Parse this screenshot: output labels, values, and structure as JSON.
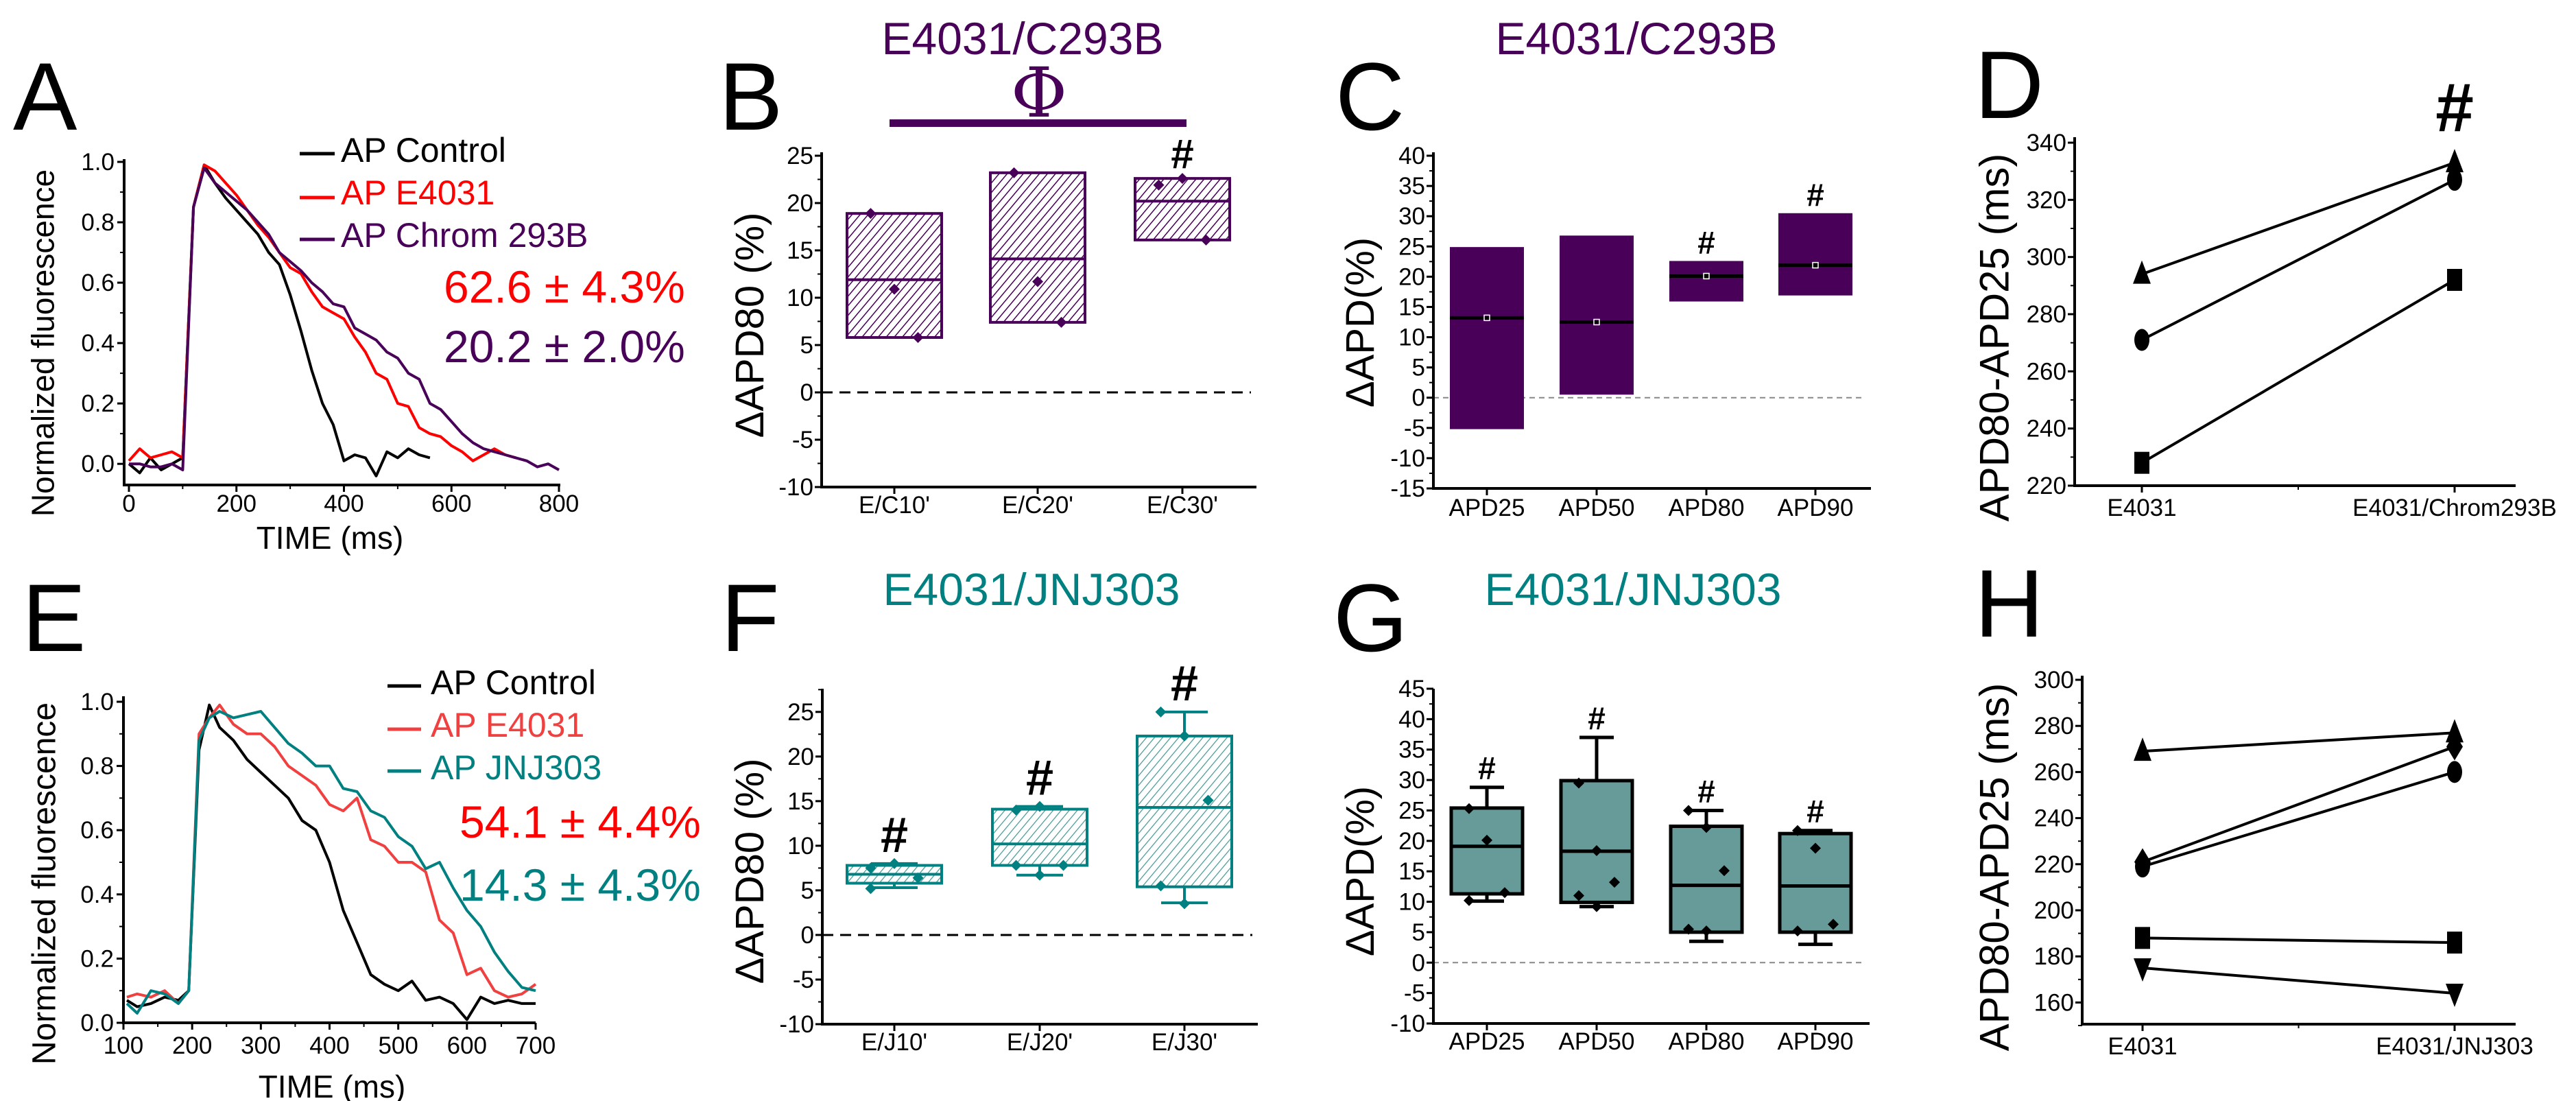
{
  "colors": {
    "purple": "#480058",
    "teal": "#008080",
    "teal_fill": "#669b99",
    "red": "#ff0000",
    "black": "#000000",
    "gray": "#888888"
  },
  "chart_data": [
    {
      "panel": "A",
      "type": "line",
      "xlabel": "TIME (ms)",
      "ylabel": "Normalized fluorescence",
      "xlim": [
        0,
        800
      ],
      "ylim": [
        -0.07,
        1.0
      ],
      "xticks": [
        "0",
        "200",
        "400",
        "600",
        "800"
      ],
      "yticks": [
        "0.0",
        "0.2",
        "0.4",
        "0.6",
        "0.8",
        "1.0"
      ],
      "series": [
        {
          "name": "AP Control",
          "color": "#000000",
          "x": [
            0,
            20,
            40,
            60,
            80,
            100,
            120,
            140,
            160,
            180,
            200,
            220,
            240,
            260,
            280,
            300,
            320,
            340,
            360,
            380,
            400,
            420,
            440,
            460,
            480,
            500,
            520,
            540,
            560
          ],
          "y": [
            0,
            -0.03,
            0.02,
            -0.02,
            0.0,
            0.02,
            0.85,
            0.99,
            0.93,
            0.88,
            0.84,
            0.8,
            0.76,
            0.7,
            0.66,
            0.56,
            0.44,
            0.31,
            0.2,
            0.13,
            0.01,
            0.03,
            0.02,
            -0.04,
            0.04,
            0.02,
            0.05,
            0.03,
            0.02
          ]
        },
        {
          "name": "AP E4031",
          "color": "#ff0000",
          "x": [
            0,
            20,
            40,
            60,
            80,
            100,
            120,
            140,
            160,
            180,
            200,
            220,
            240,
            260,
            280,
            300,
            320,
            340,
            360,
            380,
            400,
            420,
            440,
            460,
            480,
            500,
            520,
            540,
            560,
            580,
            600,
            620,
            640,
            660,
            680,
            700,
            720
          ],
          "y": [
            0.01,
            0.05,
            0.02,
            0.03,
            0.04,
            0.02,
            0.85,
            0.99,
            0.97,
            0.93,
            0.89,
            0.84,
            0.79,
            0.75,
            0.7,
            0.65,
            0.63,
            0.57,
            0.52,
            0.5,
            0.48,
            0.42,
            0.37,
            0.3,
            0.28,
            0.2,
            0.19,
            0.12,
            0.1,
            0.09,
            0.06,
            0.04,
            0.01,
            0.03,
            0.05,
            0.03,
            0.02
          ]
        },
        {
          "name": "AP Chrom 293B",
          "color": "#480058",
          "x": [
            0,
            20,
            40,
            60,
            80,
            100,
            120,
            140,
            160,
            180,
            200,
            220,
            240,
            260,
            280,
            300,
            320,
            340,
            360,
            380,
            400,
            420,
            440,
            460,
            480,
            500,
            520,
            540,
            560,
            580,
            600,
            620,
            640,
            660,
            680,
            700,
            720,
            740,
            760,
            780,
            800
          ],
          "y": [
            0,
            0,
            -0.01,
            -0.01,
            0,
            -0.02,
            0.85,
            0.98,
            0.93,
            0.9,
            0.87,
            0.84,
            0.8,
            0.76,
            0.7,
            0.67,
            0.64,
            0.6,
            0.57,
            0.53,
            0.52,
            0.45,
            0.43,
            0.41,
            0.37,
            0.35,
            0.3,
            0.28,
            0.2,
            0.18,
            0.14,
            0.1,
            0.07,
            0.05,
            0.04,
            0.03,
            0.02,
            0.01,
            -0.01,
            0,
            -0.02
          ]
        }
      ],
      "annotations": [
        {
          "text": "62.6 ± 4.3%",
          "color": "#ff0000"
        },
        {
          "text": "20.2 ± 2.0%",
          "color": "#480058"
        }
      ]
    },
    {
      "panel": "B",
      "type": "box",
      "style": "hatch",
      "title": "E4031/C293B",
      "color": "#480058",
      "ylabel": "ΔAPD80 (%)",
      "ylim": [
        -10,
        25
      ],
      "yticks": [
        "-10",
        "-5",
        "0",
        "5",
        "10",
        "15",
        "20",
        "25"
      ],
      "categories": [
        "E/C10'",
        "E/C20'",
        "E/C30'"
      ],
      "boxes": [
        {
          "q1": 5.8,
          "median": 11.9,
          "q3": 18.9,
          "points": [
            18.9,
            10.9,
            5.8
          ]
        },
        {
          "q1": 7.4,
          "median": 14.1,
          "q3": 23.2,
          "points": [
            23.2,
            11.7,
            7.4
          ]
        },
        {
          "q1": 16.1,
          "median": 20.2,
          "q3": 22.6,
          "points": [
            21.9,
            22.6,
            16.1
          ]
        }
      ],
      "significance": [
        "",
        "",
        "#"
      ],
      "bracket_symbol": "Φ",
      "reference_line": 0
    },
    {
      "panel": "C",
      "type": "box",
      "style": "solid",
      "title": "E4031/C293B",
      "color": "#480058",
      "ylabel": "ΔAPD(%)",
      "ylim": [
        -15,
        40
      ],
      "yticks": [
        "-15",
        "-10",
        "-5",
        "0",
        "5",
        "10",
        "15",
        "20",
        "25",
        "30",
        "35",
        "40"
      ],
      "categories": [
        "APD25",
        "APD50",
        "APD80",
        "APD90"
      ],
      "boxes": [
        {
          "q1": -5.2,
          "median": 13.2,
          "q3": 24.9,
          "points": []
        },
        {
          "q1": 0.5,
          "median": 12.5,
          "q3": 26.8,
          "points": []
        },
        {
          "q1": 15.9,
          "median": 20.1,
          "q3": 22.6,
          "points": []
        },
        {
          "q1": 16.9,
          "median": 21.9,
          "q3": 30.5,
          "points": []
        }
      ],
      "significance": [
        "",
        "",
        "#",
        "#"
      ],
      "reference_line": 0
    },
    {
      "panel": "D",
      "type": "paired",
      "ylabel": "APD80-APD25 (ms)",
      "ylim": [
        220,
        340
      ],
      "yticks": [
        "220",
        "240",
        "260",
        "280",
        "300",
        "320",
        "340"
      ],
      "categories": [
        "E4031",
        "E4031/Chrom293B"
      ],
      "series": [
        {
          "marker": "triangle-up",
          "values": [
            294,
            333
          ]
        },
        {
          "marker": "circle",
          "values": [
            271,
            327
          ]
        },
        {
          "marker": "square",
          "values": [
            228,
            292
          ]
        }
      ],
      "significance": [
        "",
        "#"
      ]
    },
    {
      "panel": "E",
      "type": "line",
      "xlabel": "TIME (ms)",
      "ylabel": "Normalized fluorescence",
      "xlim": [
        100,
        700
      ],
      "ylim": [
        0,
        1.0
      ],
      "xticks": [
        "100",
        "200",
        "300",
        "400",
        "500",
        "600",
        "700"
      ],
      "yticks": [
        "0.0",
        "0.2",
        "0.4",
        "0.6",
        "0.8",
        "1.0"
      ],
      "series": [
        {
          "name": "AP Control",
          "color": "#000000",
          "x": [
            105,
            120,
            140,
            160,
            180,
            195,
            210,
            225,
            240,
            260,
            280,
            300,
            320,
            340,
            360,
            380,
            400,
            420,
            440,
            460,
            480,
            500,
            520,
            540,
            560,
            580,
            600,
            620,
            640,
            660,
            680,
            700
          ],
          "y": [
            0.07,
            0.05,
            0.06,
            0.08,
            0.07,
            0.1,
            0.85,
            0.99,
            0.92,
            0.88,
            0.82,
            0.78,
            0.74,
            0.7,
            0.63,
            0.6,
            0.5,
            0.35,
            0.25,
            0.15,
            0.12,
            0.1,
            0.13,
            0.07,
            0.08,
            0.06,
            0.01,
            0.08,
            0.06,
            0.07,
            0.06,
            0.06
          ]
        },
        {
          "name": "AP E4031",
          "color": "#f04040",
          "x": [
            105,
            120,
            140,
            160,
            180,
            195,
            210,
            225,
            240,
            260,
            280,
            300,
            320,
            340,
            360,
            380,
            400,
            420,
            440,
            460,
            480,
            500,
            520,
            540,
            560,
            580,
            600,
            620,
            640,
            660,
            680,
            700
          ],
          "y": [
            0.08,
            0.09,
            0.08,
            0.1,
            0.06,
            0.1,
            0.9,
            0.95,
            0.99,
            0.93,
            0.9,
            0.9,
            0.86,
            0.8,
            0.77,
            0.74,
            0.68,
            0.66,
            0.7,
            0.57,
            0.55,
            0.5,
            0.5,
            0.47,
            0.32,
            0.28,
            0.15,
            0.17,
            0.1,
            0.08,
            0.09,
            0.12
          ]
        },
        {
          "name": "AP JNJ303",
          "color": "#008080",
          "x": [
            105,
            120,
            140,
            160,
            180,
            195,
            210,
            225,
            240,
            260,
            280,
            300,
            320,
            340,
            360,
            380,
            400,
            420,
            440,
            460,
            480,
            500,
            520,
            540,
            560,
            580,
            600,
            620,
            640,
            660,
            680,
            700
          ],
          "y": [
            0.06,
            0.03,
            0.1,
            0.09,
            0.06,
            0.1,
            0.88,
            0.95,
            0.97,
            0.95,
            0.96,
            0.97,
            0.92,
            0.87,
            0.84,
            0.8,
            0.8,
            0.73,
            0.72,
            0.66,
            0.64,
            0.58,
            0.55,
            0.48,
            0.5,
            0.42,
            0.35,
            0.3,
            0.22,
            0.16,
            0.11,
            0.1
          ]
        }
      ],
      "annotations": [
        {
          "text": "54.1 ± 4.4%",
          "color": "#ff0000"
        },
        {
          "text": "14.3 ± 4.3%",
          "color": "#008080"
        }
      ]
    },
    {
      "panel": "F",
      "type": "box",
      "style": "hatch",
      "title": "E4031/JNJ303",
      "color": "#008080",
      "ylabel": "ΔAPD80 (%)",
      "ylim": [
        -10,
        27.6
      ],
      "yticks": [
        "-10",
        "-5",
        "0",
        "5",
        "10",
        "15",
        "20",
        "25"
      ],
      "categories": [
        "E/J10'",
        "E/J20'",
        "E/J30'"
      ],
      "boxes": [
        {
          "q1": 5.8,
          "median": 6.8,
          "q3": 7.8,
          "whisker_low": 5.3,
          "whisker_high": 8.0,
          "points": [
            7.5,
            8.0,
            6.4,
            5.2
          ]
        },
        {
          "q1": 7.8,
          "median": 10.2,
          "q3": 14.1,
          "whisker_low": 6.7,
          "whisker_high": 14.4,
          "points": [
            14.0,
            14.4,
            7.8,
            7.8,
            6.7
          ]
        },
        {
          "q1": 5.4,
          "median": 14.3,
          "q3": 22.3,
          "whisker_low": 3.6,
          "whisker_high": 25.0,
          "points": [
            25.0,
            22.3,
            15.1,
            5.5,
            3.5
          ]
        }
      ],
      "significance": [
        "#",
        "#",
        "#"
      ],
      "reference_line": 0
    },
    {
      "panel": "G",
      "type": "box",
      "style": "solid-outline",
      "title": "E4031/JNJ303",
      "color": "#008080",
      "ylabel": "ΔAPD(%)",
      "ylim": [
        -10,
        45
      ],
      "yticks": [
        "-10",
        "-5",
        "0",
        "5",
        "10",
        "15",
        "20",
        "25",
        "30",
        "35",
        "40",
        "45"
      ],
      "categories": [
        "APD25",
        "APD50",
        "APD80",
        "APD90"
      ],
      "boxes": [
        {
          "q1": 11.3,
          "median": 19.1,
          "q3": 25.4,
          "whisker_low": 10.1,
          "whisker_high": 28.8,
          "points": [
            25.3,
            20.1,
            11.5,
            10.2
          ]
        },
        {
          "q1": 9.9,
          "median": 18.3,
          "q3": 29.9,
          "whisker_low": 9.2,
          "whisker_high": 37.0,
          "points": [
            29.5,
            18.4,
            13.2,
            11.0,
            9.2
          ]
        },
        {
          "q1": 5.0,
          "median": 12.7,
          "q3": 22.4,
          "whisker_low": 3.5,
          "whisker_high": 25.0,
          "points": [
            25.0,
            22.2,
            15.1,
            5.5,
            5.2
          ]
        },
        {
          "q1": 5.0,
          "median": 12.6,
          "q3": 21.2,
          "whisker_low": 3.0,
          "whisker_high": 21.7,
          "points": [
            21.7,
            18.8,
            6.3,
            5.2
          ]
        }
      ],
      "significance": [
        "#",
        "#",
        "#",
        "#"
      ],
      "reference_line": 0
    },
    {
      "panel": "H",
      "type": "paired",
      "ylabel": "APD80-APD25 (ms)",
      "ylim": [
        150,
        300
      ],
      "yticks": [
        "160",
        "180",
        "200",
        "220",
        "240",
        "260",
        "280",
        "300"
      ],
      "categories": [
        "E4031",
        "E4031/JNJ303"
      ],
      "series": [
        {
          "marker": "triangle-up",
          "values": [
            269,
            277
          ]
        },
        {
          "marker": "diamond",
          "values": [
            221,
            271
          ]
        },
        {
          "marker": "circle",
          "values": [
            219,
            260
          ]
        },
        {
          "marker": "square",
          "values": [
            188,
            186
          ]
        },
        {
          "marker": "triangle-down",
          "values": [
            175,
            164
          ]
        }
      ],
      "significance": [
        "",
        ""
      ]
    }
  ]
}
